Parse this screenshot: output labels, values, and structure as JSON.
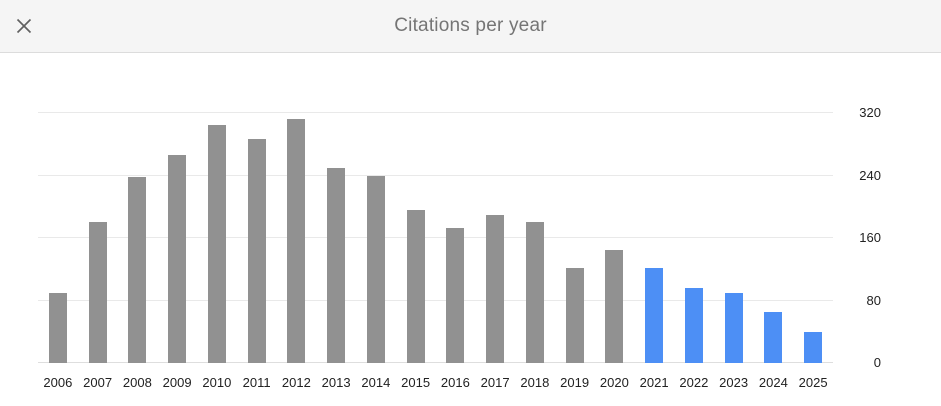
{
  "dialog": {
    "title": "Citations per year",
    "close_icon": "✕"
  },
  "chart_data": {
    "type": "bar",
    "title": "Citations per year",
    "categories": [
      "2006",
      "2007",
      "2008",
      "2009",
      "2010",
      "2011",
      "2012",
      "2013",
      "2014",
      "2015",
      "2016",
      "2017",
      "2018",
      "2019",
      "2020",
      "2021",
      "2022",
      "2023",
      "2024",
      "2025"
    ],
    "values": [
      90,
      181,
      238,
      266,
      305,
      287,
      312,
      250,
      240,
      196,
      173,
      189,
      181,
      121,
      145,
      121,
      96,
      90,
      65,
      40
    ],
    "highlight_categories": [
      "2021",
      "2022",
      "2023",
      "2024",
      "2025"
    ],
    "colors": {
      "bar_default": "#919191",
      "bar_highlight": "#4d8ff5"
    },
    "ylim": [
      0,
      320
    ],
    "yticks": [
      0,
      80,
      160,
      240,
      320
    ],
    "ytick_side": "right",
    "grid": true,
    "xlabel": "",
    "ylabel": ""
  }
}
